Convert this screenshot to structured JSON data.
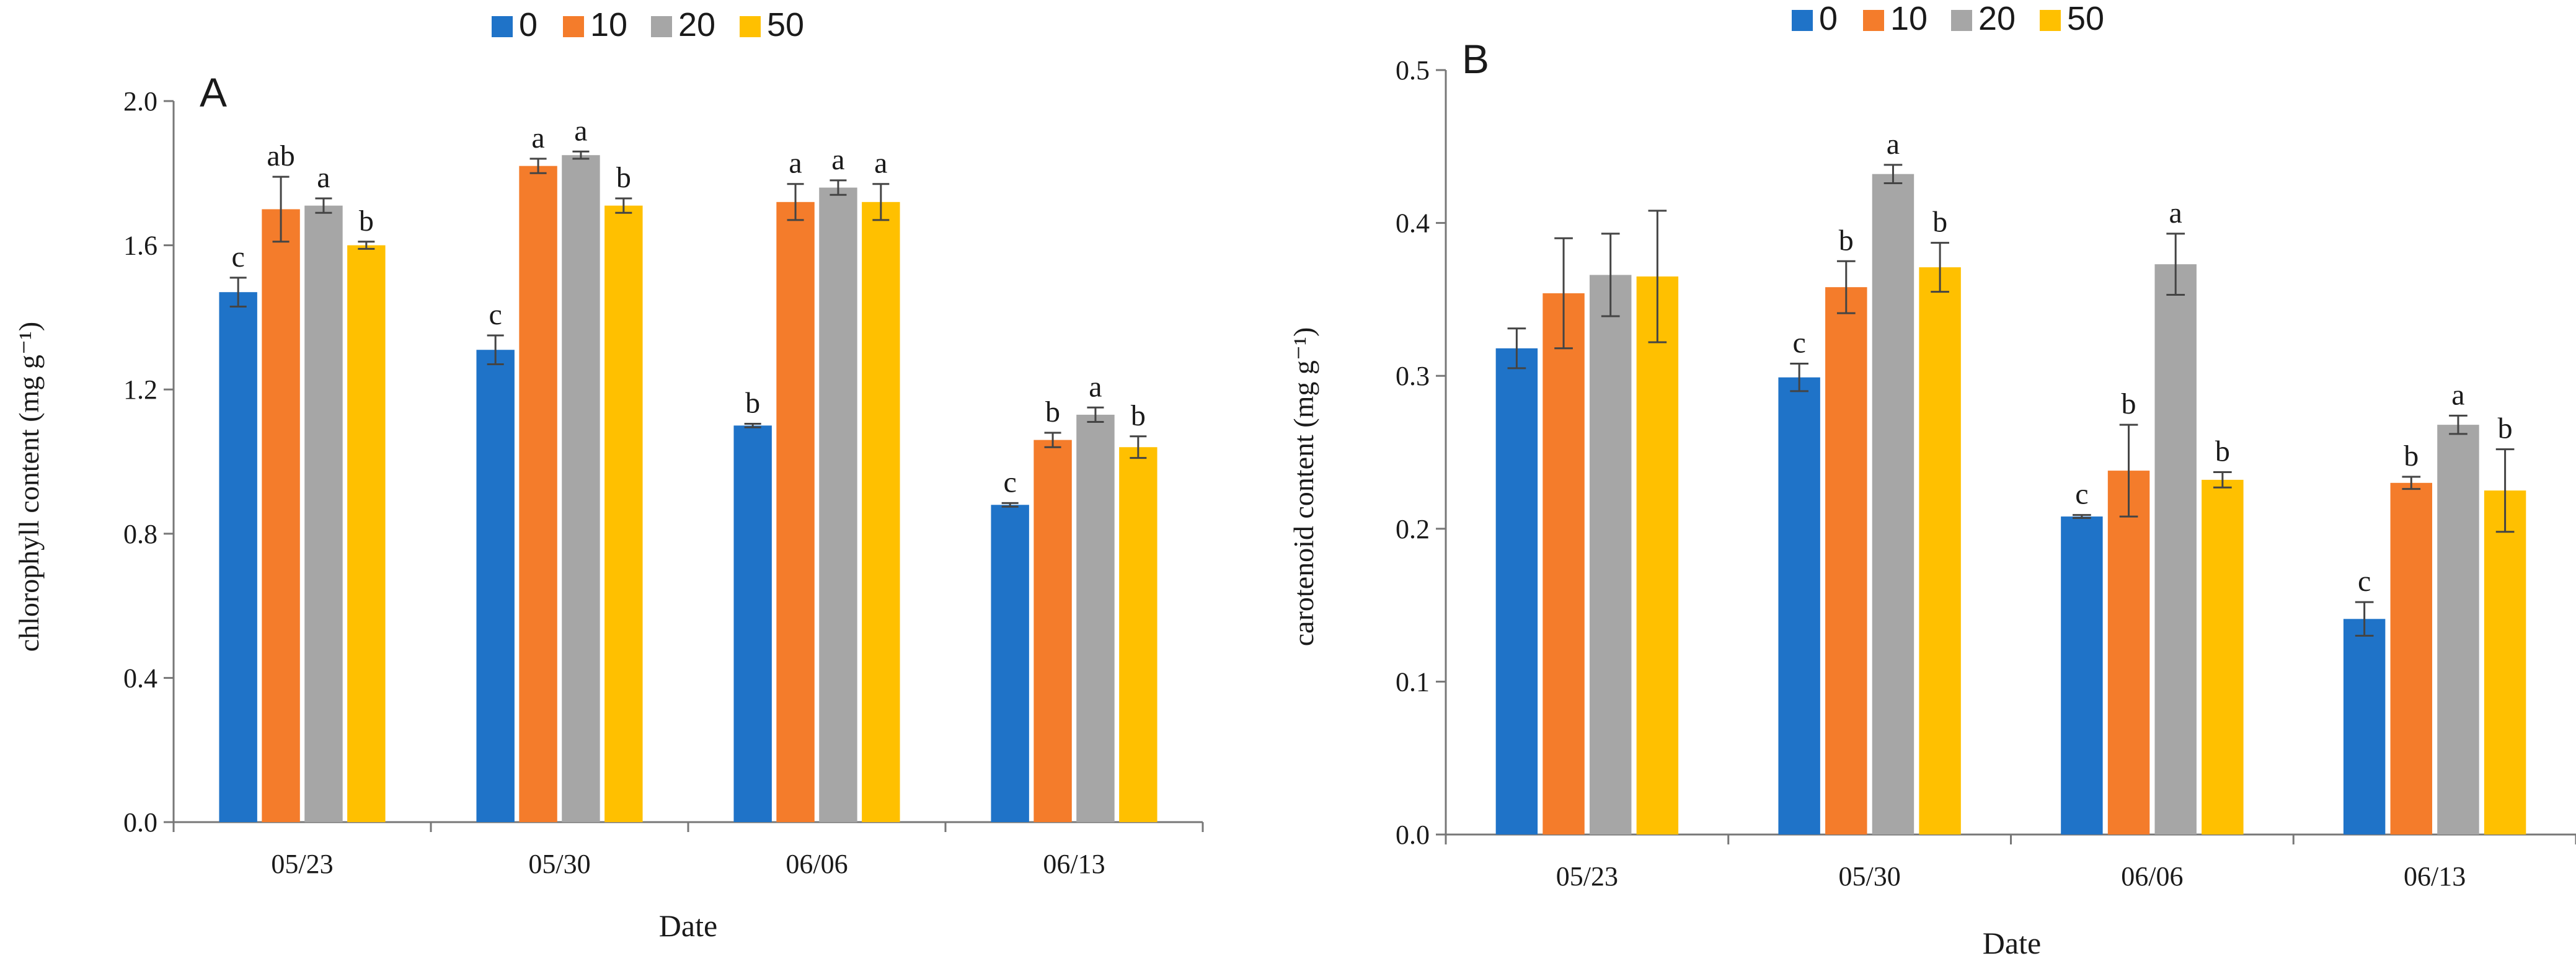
{
  "legend_items": [
    {
      "label": "0",
      "color": "#1f73c8"
    },
    {
      "label": "10",
      "color": "#f47c2b"
    },
    {
      "label": "20",
      "color": "#a6a6a6"
    },
    {
      "label": "50",
      "color": "#ffc000"
    }
  ],
  "chart_data": [
    {
      "type": "bar",
      "panel_label": "A",
      "categories": [
        "05/23",
        "05/30",
        "06/06",
        "06/13"
      ],
      "xlabel": "Date",
      "ylabel": "chlorophyll content (mg g⁻¹)",
      "ylim": [
        0,
        2.0
      ],
      "yticks": [
        "0.0",
        "0.4",
        "0.8",
        "1.2",
        "1.6",
        "2.0"
      ],
      "legend": "top-center",
      "grid": false,
      "series": [
        {
          "name": "0",
          "values": [
            1.47,
            1.31,
            1.1,
            0.88
          ],
          "errors": [
            0.04,
            0.04,
            0.005,
            0.005
          ],
          "letters": [
            "c",
            "c",
            "b",
            "c"
          ]
        },
        {
          "name": "10",
          "values": [
            1.7,
            1.82,
            1.72,
            1.06
          ],
          "errors": [
            0.09,
            0.02,
            0.05,
            0.02
          ],
          "letters": [
            "ab",
            "a",
            "a",
            "b"
          ]
        },
        {
          "name": "20",
          "values": [
            1.71,
            1.85,
            1.76,
            1.13
          ],
          "errors": [
            0.02,
            0.01,
            0.02,
            0.02
          ],
          "letters": [
            "a",
            "a",
            "a",
            "a"
          ]
        },
        {
          "name": "50",
          "values": [
            1.6,
            1.71,
            1.72,
            1.04
          ],
          "errors": [
            0.01,
            0.02,
            0.05,
            0.03
          ],
          "letters": [
            "b",
            "b",
            "a",
            "b"
          ]
        }
      ]
    },
    {
      "type": "bar",
      "panel_label": "B",
      "categories": [
        "05/23",
        "05/30",
        "06/06",
        "06/13"
      ],
      "xlabel": "Date",
      "ylabel": "carotenoid content (mg g⁻¹)",
      "ylim": [
        0,
        0.5
      ],
      "yticks": [
        "0.0",
        "0.1",
        "0.2",
        "0.3",
        "0.4",
        "0.5"
      ],
      "legend": "top-center",
      "grid": false,
      "series": [
        {
          "name": "0",
          "values": [
            0.318,
            0.299,
            0.208,
            0.141
          ],
          "errors": [
            0.013,
            0.009,
            0.001,
            0.011
          ],
          "letters": [
            "",
            "c",
            "c",
            "c"
          ]
        },
        {
          "name": "10",
          "values": [
            0.354,
            0.358,
            0.238,
            0.23
          ],
          "errors": [
            0.036,
            0.017,
            0.03,
            0.004
          ],
          "letters": [
            "",
            "b",
            "b",
            "b"
          ]
        },
        {
          "name": "20",
          "values": [
            0.366,
            0.432,
            0.373,
            0.268
          ],
          "errors": [
            0.027,
            0.006,
            0.02,
            0.006
          ],
          "letters": [
            "",
            "a",
            "a",
            "a"
          ]
        },
        {
          "name": "50",
          "values": [
            0.365,
            0.371,
            0.232,
            0.225
          ],
          "errors": [
            0.043,
            0.016,
            0.005,
            0.027
          ],
          "letters": [
            "",
            "b",
            "b",
            "b"
          ]
        }
      ]
    }
  ]
}
